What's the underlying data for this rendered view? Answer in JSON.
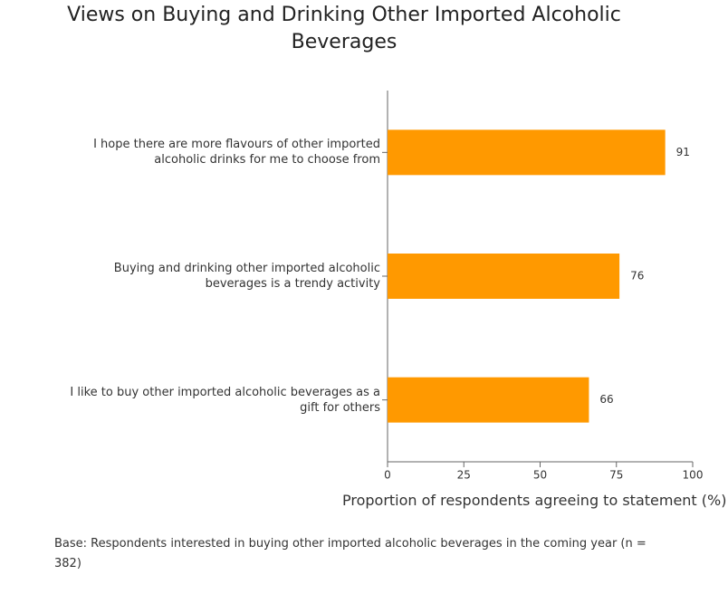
{
  "chart_data": {
    "type": "bar",
    "orientation": "horizontal",
    "title": "Views on Buying and Drinking Other Imported Alcoholic Beverages",
    "categories": [
      "I hope there are more flavours of other imported alcoholic drinks for me to choose from",
      "Buying and drinking other imported alcoholic beverages is a trendy activity",
      "I like to buy other imported alcoholic beverages as a gift for others"
    ],
    "values": [
      91,
      76,
      66
    ],
    "color": "#ff9900",
    "xlim": [
      0,
      100
    ],
    "xticks": [
      0,
      25,
      50,
      75,
      100
    ],
    "xlabel": "Proportion of respondents agreeing to statement (%)",
    "note": "Base: Respondents interested in buying other imported alcoholic beverages in the coming year (n = 382)"
  }
}
